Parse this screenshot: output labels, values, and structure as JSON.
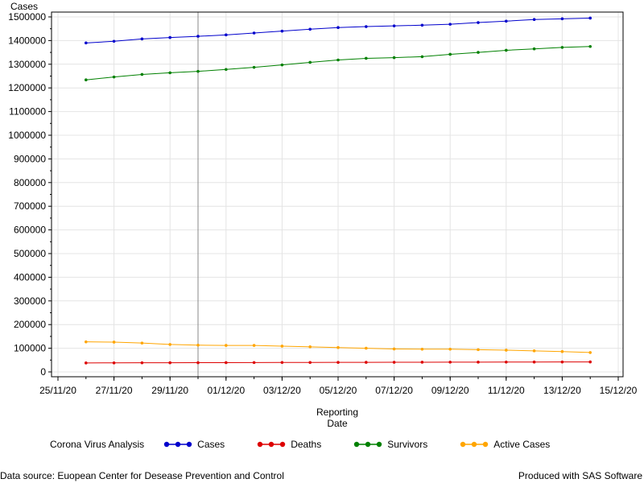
{
  "chart_data": {
    "type": "line",
    "ylabel": "Cases",
    "xlabel_lines": [
      "Reporting",
      "Date"
    ],
    "legend_title": "Corona Virus Analysis",
    "ylim": [
      0,
      1500000
    ],
    "y_ticks": [
      0,
      100000,
      200000,
      300000,
      400000,
      500000,
      600000,
      700000,
      800000,
      900000,
      1000000,
      1100000,
      1200000,
      1300000,
      1400000,
      1500000
    ],
    "y_tick_labels": [
      "0",
      "100000",
      "200000",
      "300000",
      "400000",
      "500000",
      "600000",
      "700000",
      "800000",
      "900000",
      "1000000",
      "1100000",
      "1200000",
      "1300000",
      "1400000",
      "1500000"
    ],
    "x_tick_labels": [
      "25/11/20",
      "27/11/20",
      "29/11/20",
      "01/12/20",
      "03/12/20",
      "05/12/20",
      "07/12/20",
      "09/12/20",
      "11/12/20",
      "13/12/20",
      "15/12/20"
    ],
    "x_dates": [
      "26/11/20",
      "27/11/20",
      "28/11/20",
      "29/11/20",
      "30/11/20",
      "01/12/20",
      "02/12/20",
      "03/12/20",
      "04/12/20",
      "05/12/20",
      "06/12/20",
      "07/12/20",
      "08/12/20",
      "09/12/20",
      "10/12/20",
      "11/12/20",
      "12/12/20",
      "13/12/20",
      "14/12/20"
    ],
    "reference_line_x": "30/11/20",
    "grid": true,
    "legend_placement": "bottom",
    "series": [
      {
        "name": "Cases",
        "color": "#0000cc",
        "values": [
          1390000,
          1397000,
          1407000,
          1413000,
          1418000,
          1424000,
          1432000,
          1440000,
          1448000,
          1455000,
          1459000,
          1462000,
          1465000,
          1469000,
          1476000,
          1482000,
          1489000,
          1492000,
          1495000
        ]
      },
      {
        "name": "Deaths",
        "color": "#dd0000",
        "values": [
          38000,
          38200,
          38500,
          38800,
          39000,
          39300,
          39500,
          39800,
          40000,
          40200,
          40500,
          40700,
          41000,
          41200,
          41400,
          41600,
          41800,
          42000,
          42300
        ]
      },
      {
        "name": "Survivors",
        "color": "#008000",
        "values": [
          1234000,
          1246000,
          1257000,
          1264000,
          1270000,
          1278000,
          1287000,
          1297000,
          1308000,
          1318000,
          1325000,
          1328000,
          1332000,
          1342000,
          1350000,
          1359000,
          1365000,
          1371000,
          1375000
        ]
      },
      {
        "name": "Active Cases",
        "color": "#ffa500",
        "values": [
          127000,
          126000,
          122000,
          116000,
          113000,
          112000,
          112000,
          109000,
          106000,
          103000,
          100000,
          97000,
          96000,
          96000,
          94000,
          92000,
          89000,
          86000,
          82000
        ]
      }
    ]
  },
  "footer": {
    "source": "Data source: Euopean Center for Desease Prevention and Control",
    "produced": "Produced with SAS Software"
  }
}
